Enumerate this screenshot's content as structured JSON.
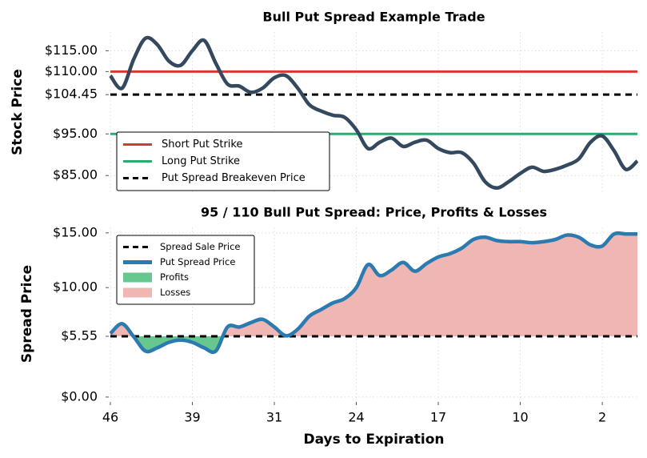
{
  "chart_data": [
    {
      "type": "line",
      "title": "Bull Put Spread Example Trade",
      "ylabel": "Stock Price",
      "xlim": [
        0,
        45
      ],
      "ylim": [
        81,
        119.5
      ],
      "yticks": [
        {
          "value": 85,
          "label": "$85.00"
        },
        {
          "value": 95,
          "label": "$95.00"
        },
        {
          "value": 104.45,
          "label": "$104.45"
        },
        {
          "value": 110,
          "label": "$110.00"
        },
        {
          "value": 115,
          "label": "$115.00"
        }
      ],
      "grid": true,
      "legend": "lower left",
      "hlines": [
        {
          "name": "Short Put Strike",
          "value": 110,
          "color": "#d33b2f",
          "dash": false
        },
        {
          "name": "Long Put Strike",
          "value": 95,
          "color": "#2eaa6e",
          "dash": false
        },
        {
          "name": "Put Spread Breakeven Price",
          "value": 104.45,
          "color": "#000000",
          "dash": true
        }
      ],
      "series": [
        {
          "color": "#34495e",
          "values": [
            109,
            106,
            113,
            118,
            116.5,
            112.5,
            111.5,
            115,
            117.5,
            112,
            107,
            106.5,
            105,
            106,
            108.5,
            109,
            106,
            102,
            100.5,
            99.5,
            99,
            96,
            91.5,
            93,
            94,
            92,
            93,
            93.5,
            91.5,
            90.5,
            90.5,
            88,
            83.5,
            82,
            83.5,
            85.5,
            87,
            86,
            86.5,
            87.5,
            89,
            93,
            94.5,
            91,
            86.5,
            88.5
          ]
        }
      ]
    },
    {
      "type": "line",
      "title": "95 / 110 Bull Put Spread: Price, Profits & Losses",
      "ylabel": "Spread Price",
      "xlabel": "Days to Expiration",
      "xlim": [
        0,
        45
      ],
      "ylim": [
        -0.3,
        15.5
      ],
      "xticks": [
        {
          "value": 0,
          "label": "46"
        },
        {
          "value": 7,
          "label": "39"
        },
        {
          "value": 14,
          "label": "31"
        },
        {
          "value": 21,
          "label": "24"
        },
        {
          "value": 28,
          "label": "17"
        },
        {
          "value": 35,
          "label": "10"
        },
        {
          "value": 42,
          "label": "2"
        }
      ],
      "yticks": [
        {
          "value": 0,
          "label": "$0.00"
        },
        {
          "value": 5.55,
          "label": "$5.55"
        },
        {
          "value": 10,
          "label": "$10.00"
        },
        {
          "value": 15,
          "label": "$15.00"
        }
      ],
      "grid": true,
      "legend": "upper left",
      "hlines": [
        {
          "name": "Spread Sale Price",
          "value": 5.55,
          "color": "#000000",
          "dash": true
        }
      ],
      "series": [
        {
          "name": "Put Spread Price",
          "color": "#2b7bb0",
          "values": [
            5.8,
            6.7,
            5.5,
            4.2,
            4.5,
            5.0,
            5.2,
            5.0,
            4.5,
            4.2,
            6.4,
            6.4,
            6.8,
            7.1,
            6.4,
            5.6,
            6.2,
            7.4,
            8.0,
            8.6,
            9.0,
            10.0,
            12.1,
            11.1,
            11.6,
            12.3,
            11.5,
            12.2,
            12.8,
            13.1,
            13.6,
            14.4,
            14.6,
            14.3,
            14.2,
            14.2,
            14.1,
            14.2,
            14.4,
            14.8,
            14.6,
            13.9,
            13.8,
            14.9,
            14.9,
            14.9
          ]
        }
      ],
      "fills": [
        {
          "name": "Profits",
          "color": "#66c88f",
          "side": "below"
        },
        {
          "name": "Losses",
          "color": "#f0b6b4",
          "side": "above"
        }
      ]
    }
  ]
}
